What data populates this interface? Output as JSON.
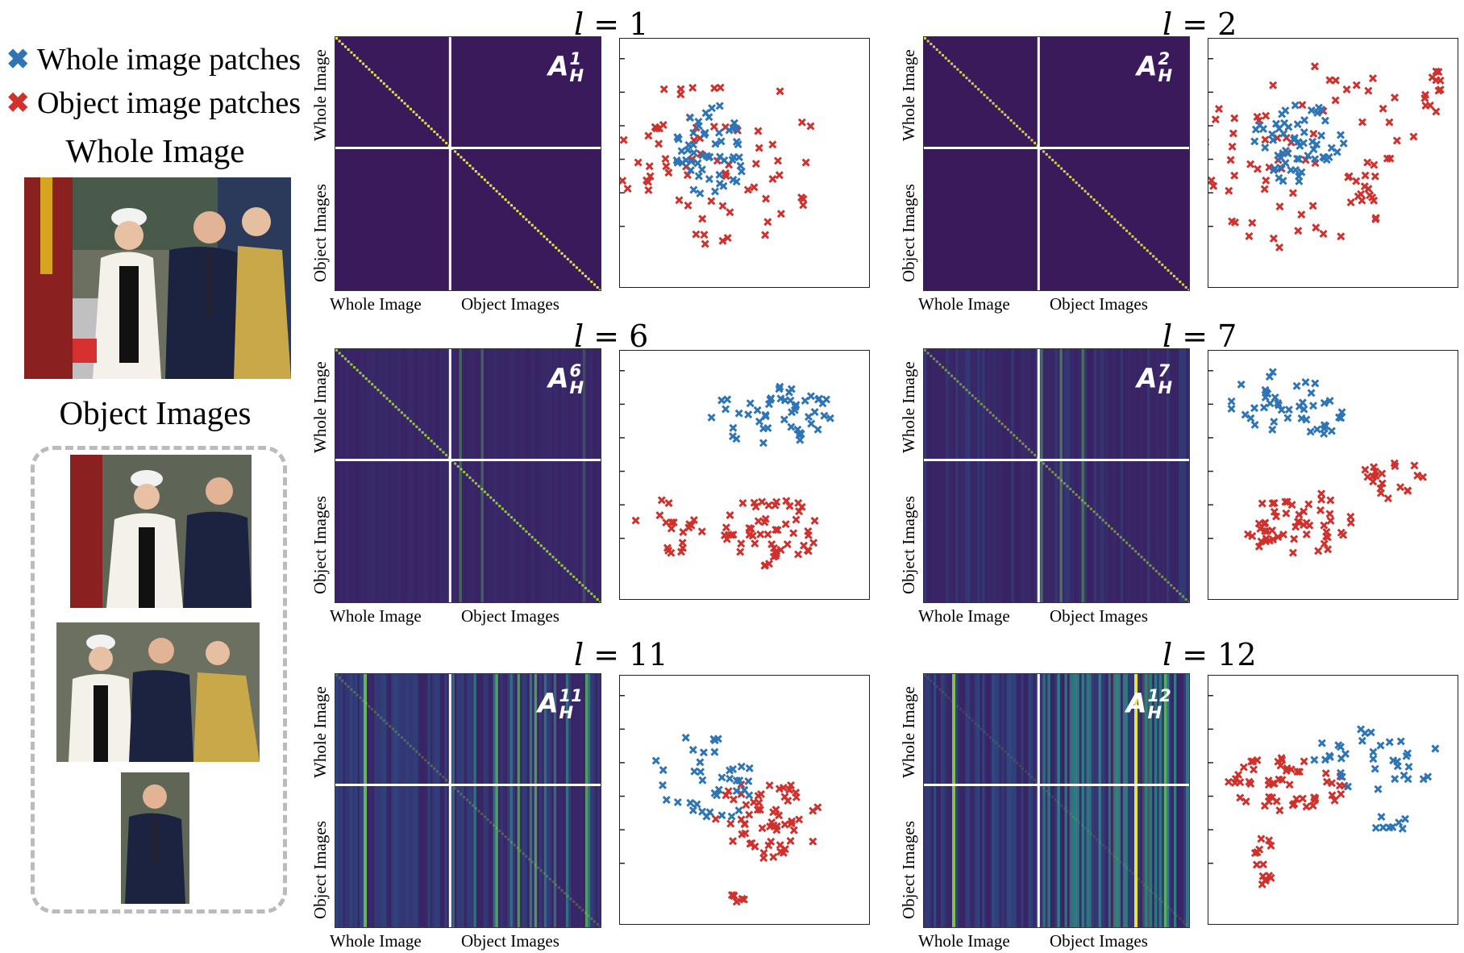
{
  "legend": {
    "items": [
      {
        "marker": "✖",
        "label": "Whole image patches",
        "color": "#2e75b6"
      },
      {
        "marker": "✖",
        "label": "Object image patches",
        "color": "#d0312d"
      }
    ]
  },
  "left": {
    "whole_title": "Whole Image",
    "object_title": "Object Images"
  },
  "axis_labels": {
    "whole": "Whole Image",
    "object": "Object Images"
  },
  "panels": [
    {
      "layer_var": "l",
      "eq": "=",
      "layer": "1",
      "matrix_symbol": "A",
      "sub": "H",
      "sup": "1"
    },
    {
      "layer_var": "l",
      "eq": "=",
      "layer": "2",
      "matrix_symbol": "A",
      "sub": "H",
      "sup": "2"
    },
    {
      "layer_var": "l",
      "eq": "=",
      "layer": "6",
      "matrix_symbol": "A",
      "sub": "H",
      "sup": "6"
    },
    {
      "layer_var": "l",
      "eq": "=",
      "layer": "7",
      "matrix_symbol": "A",
      "sub": "H",
      "sup": "7"
    },
    {
      "layer_var": "l",
      "eq": "=",
      "layer": "11",
      "matrix_symbol": "A",
      "sub": "H",
      "sup": "11"
    },
    {
      "layer_var": "l",
      "eq": "=",
      "layer": "12",
      "matrix_symbol": "A",
      "sub": "H",
      "sup": "12"
    }
  ],
  "colors": {
    "blue": "#2e75b6",
    "red": "#d0312d",
    "heat_bg": "#3b1a5c",
    "heat_diag": "#e6e34a"
  }
}
